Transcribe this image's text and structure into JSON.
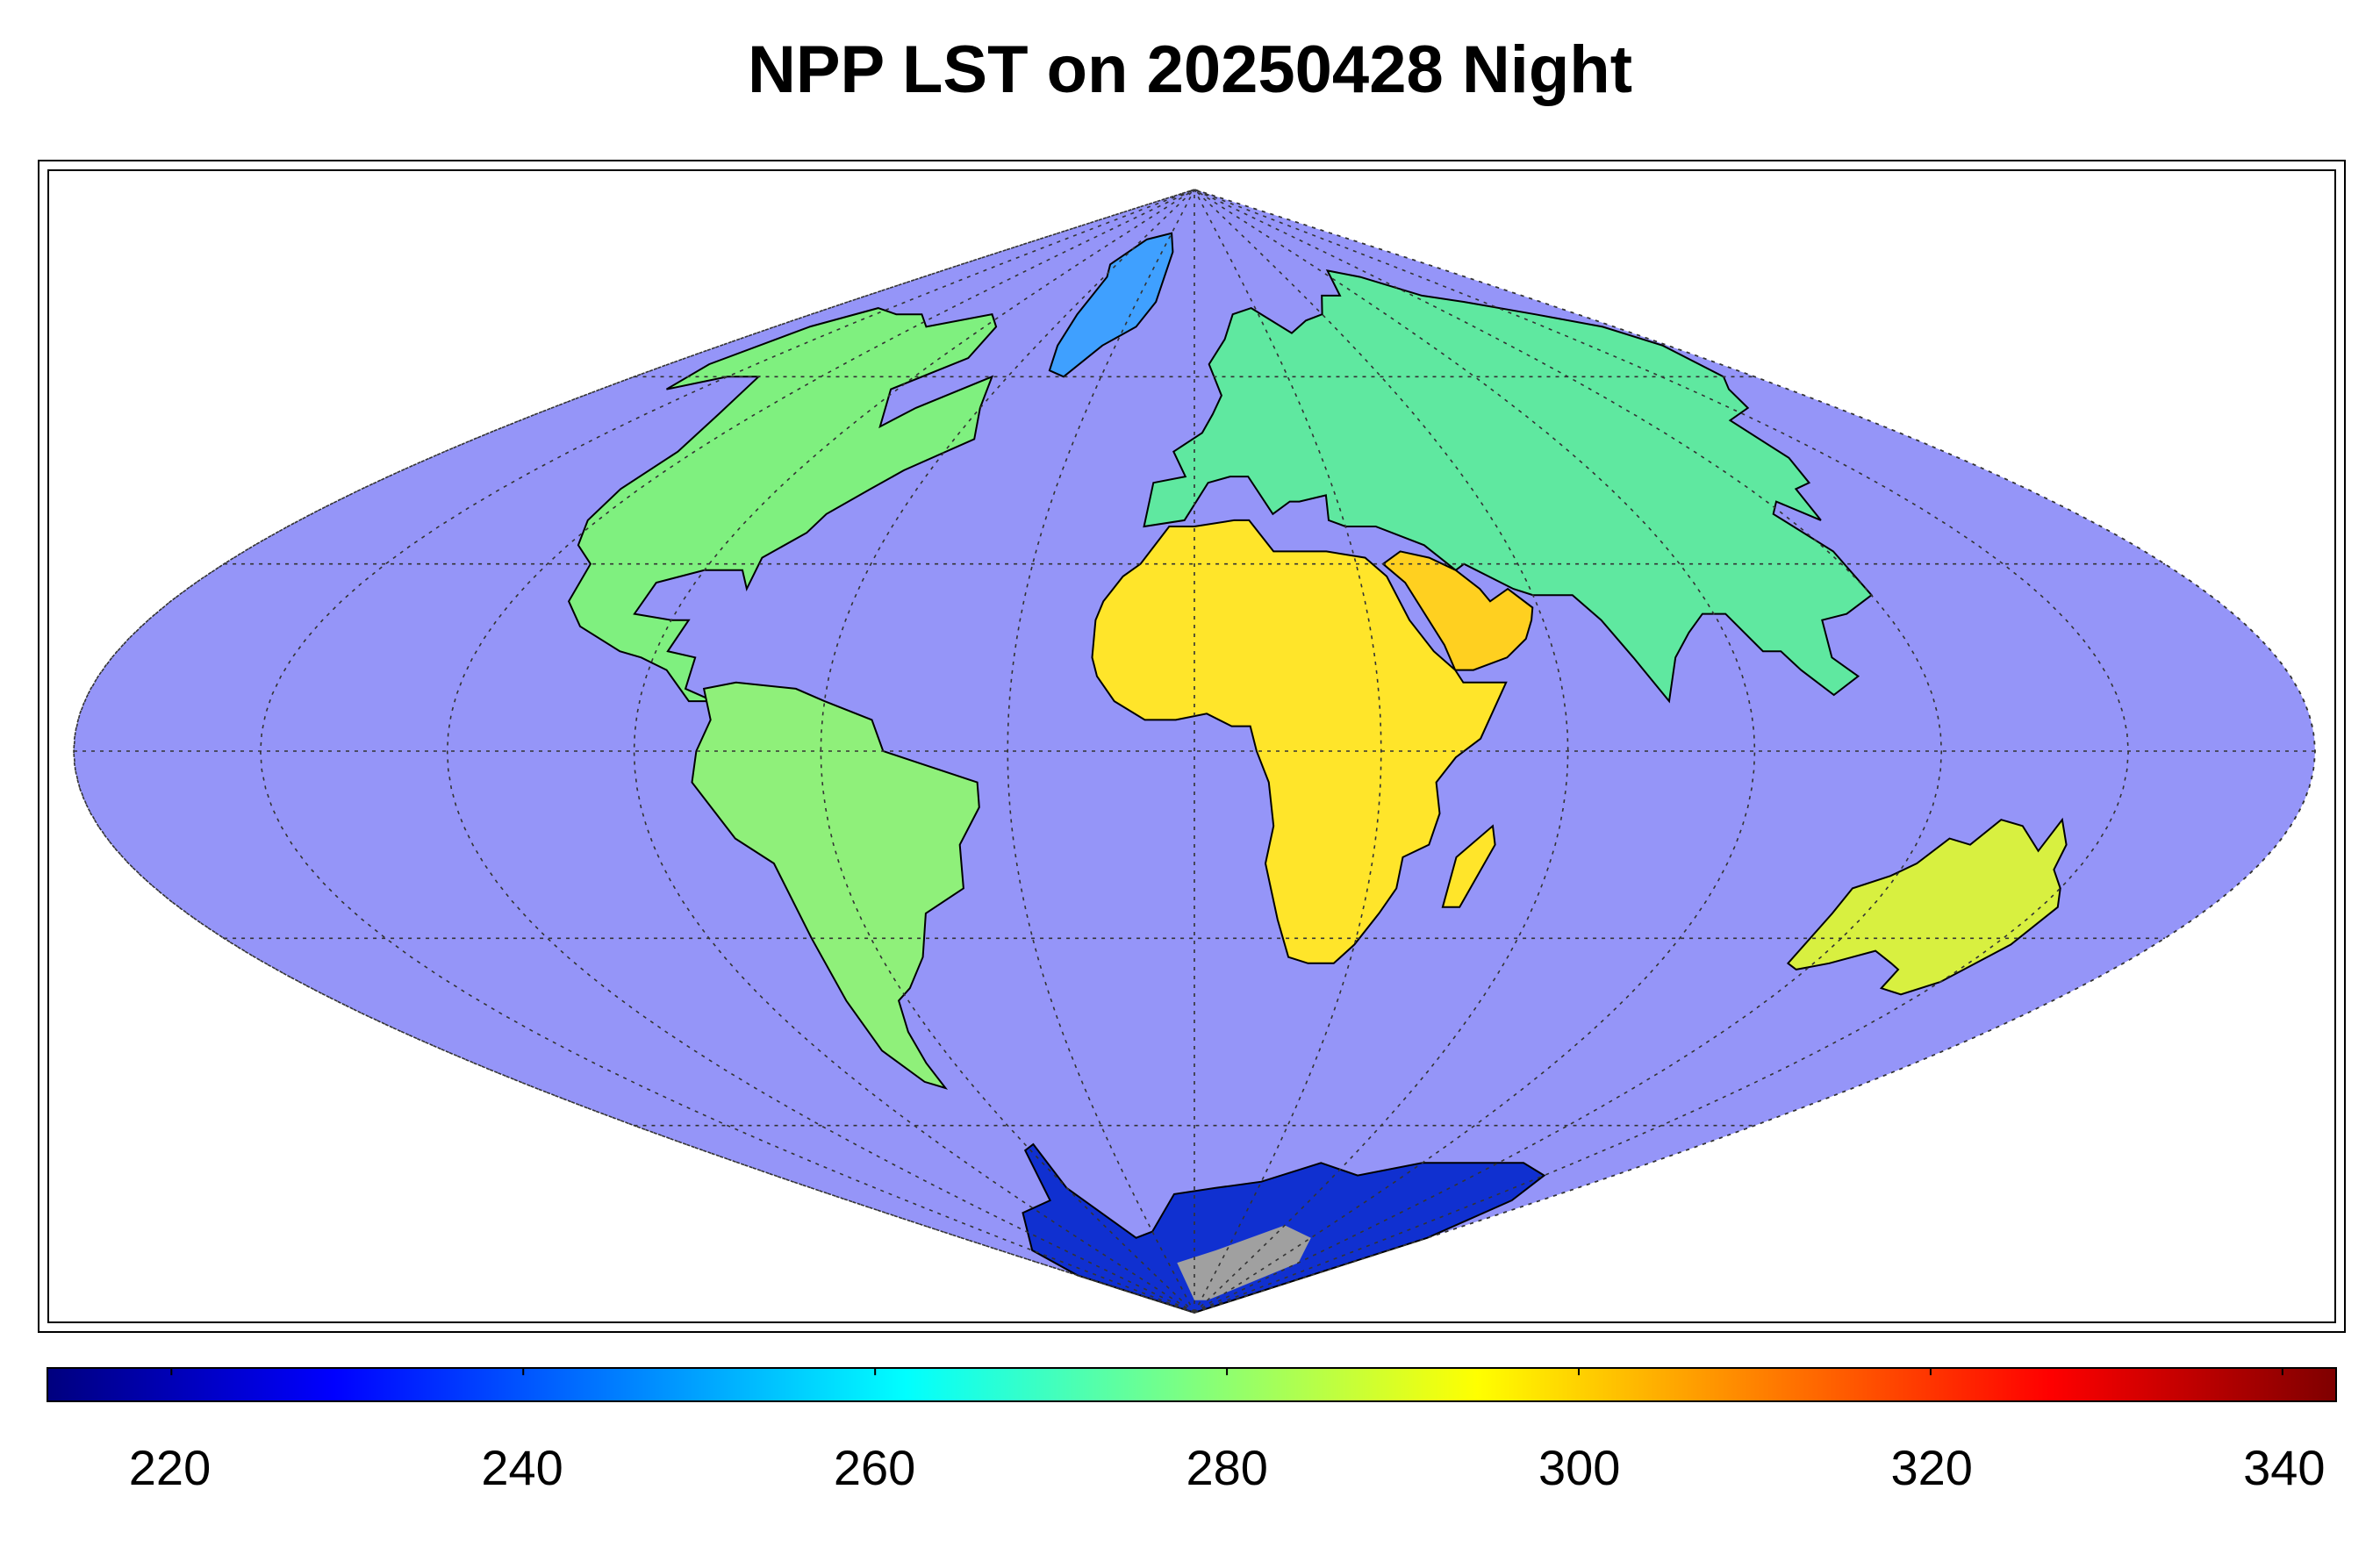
{
  "title": "NPP LST on 20250428 Night",
  "colors": {
    "ocean": "#9595f8",
    "no_data_ice": "#a0a0a0",
    "coastline": "#000000",
    "graticule": "#333333"
  },
  "colorbar": {
    "min": 213,
    "max": 343,
    "ticks": [
      "220",
      "240",
      "260",
      "280",
      "300",
      "320",
      "340"
    ],
    "tick_values": [
      220,
      240,
      260,
      280,
      300,
      320,
      340
    ],
    "colormap": "jet",
    "stops": [
      "#00007f",
      "#0000ff",
      "#007fff",
      "#00ffff",
      "#7fff7f",
      "#ffff00",
      "#ff7f00",
      "#ff0000",
      "#7f0000"
    ]
  },
  "map_data": {
    "projection": "sinusoidal",
    "graticule_lon_step": 30,
    "graticule_lat_step": 30,
    "regions": [
      {
        "name": "north-america",
        "color": "#7ff07f"
      },
      {
        "name": "south-america",
        "color": "#8ff07a"
      },
      {
        "name": "greenland",
        "color": "#3fa0ff"
      },
      {
        "name": "europe-asia",
        "color": "#5fe8a0"
      },
      {
        "name": "africa",
        "color": "#ffe52a"
      },
      {
        "name": "arabia-india",
        "color": "#ffd020"
      },
      {
        "name": "australia",
        "color": "#d8f040"
      },
      {
        "name": "antarctica",
        "color": "#1030d0"
      }
    ]
  }
}
